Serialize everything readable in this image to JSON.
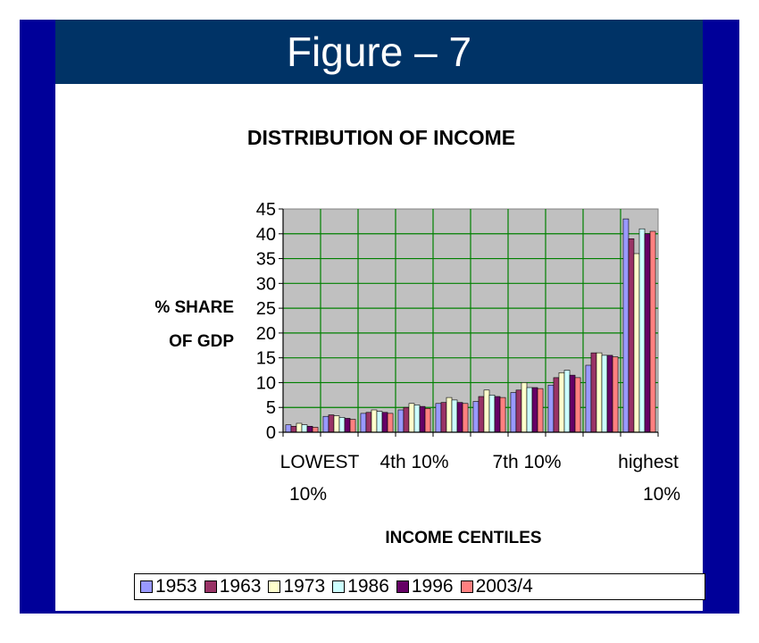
{
  "slide": {
    "title": "Figure – 7",
    "colors": {
      "background": "#000099",
      "title_bar": "#003366",
      "title_text": "#ffffff",
      "panel": "#ffffff"
    }
  },
  "chart_data": {
    "type": "bar",
    "title": "DISTRIBUTION OF INCOME",
    "ylabel_lines": [
      "% SHARE",
      "OF GDP"
    ],
    "xlabel": "INCOME CENTILES",
    "ylim": [
      0,
      45
    ],
    "yticks": [
      0,
      5,
      10,
      15,
      20,
      25,
      30,
      35,
      40,
      45
    ],
    "categories": [
      "LOWEST 10%",
      "",
      "",
      "4th 10%",
      "",
      "",
      "7th 10%",
      "",
      "",
      "highest 10%"
    ],
    "category_tick_labels": [
      {
        "category_index": 0,
        "lines": [
          "LOWEST",
          "10%"
        ]
      },
      {
        "category_index": 3,
        "lines": [
          "4th 10%"
        ]
      },
      {
        "category_index": 6,
        "lines": [
          "7th 10%"
        ]
      },
      {
        "category_index": 9,
        "lines": [
          "highest",
          "10%"
        ]
      }
    ],
    "grid": true,
    "plot_background": "#c0c0c0",
    "grid_color": "#008000",
    "legend_position": "bottom",
    "series": [
      {
        "name": "1953",
        "color": "#9999ff",
        "values": [
          1.5,
          3.2,
          3.8,
          4.5,
          5.8,
          6.2,
          8.0,
          9.5,
          13.5,
          43.0
        ]
      },
      {
        "name": "1963",
        "color": "#993366",
        "values": [
          1.2,
          3.5,
          4.0,
          5.0,
          6.0,
          7.2,
          8.5,
          11.0,
          16.0,
          39.0
        ]
      },
      {
        "name": "1973",
        "color": "#ffffcc",
        "values": [
          1.8,
          3.3,
          4.5,
          5.8,
          7.0,
          8.5,
          10.0,
          12.0,
          16.0,
          36.0
        ]
      },
      {
        "name": "1986",
        "color": "#ccffff",
        "values": [
          1.5,
          3.0,
          4.2,
          5.5,
          6.5,
          7.5,
          9.0,
          12.5,
          15.5,
          41.0
        ]
      },
      {
        "name": "1996",
        "color": "#660066",
        "values": [
          1.2,
          2.8,
          4.0,
          5.2,
          6.0,
          7.2,
          9.0,
          11.5,
          15.5,
          40.0
        ]
      },
      {
        "name": "2003/4",
        "color": "#ff8080",
        "values": [
          1.0,
          2.6,
          3.8,
          4.8,
          5.8,
          7.0,
          8.8,
          11.0,
          15.2,
          40.5
        ]
      }
    ]
  }
}
